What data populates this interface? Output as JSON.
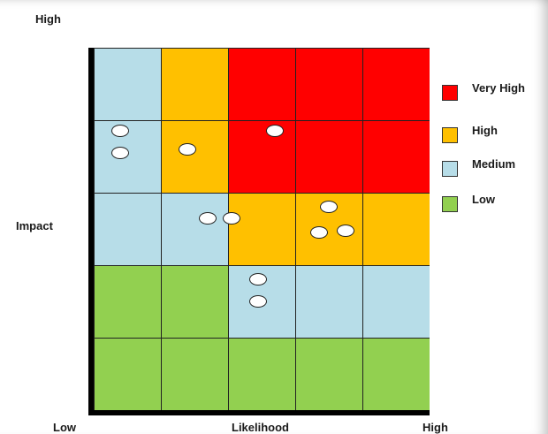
{
  "axis": {
    "y_high": "High",
    "y_label": "Impact",
    "x_low": "Low",
    "x_label": "Likelihood",
    "x_high": "High"
  },
  "colors": {
    "very_high": "#ff0000",
    "high": "#ffc000",
    "medium": "#b7dde8",
    "low": "#92d050"
  },
  "legend": [
    {
      "key": "very_high",
      "label": "Very High"
    },
    {
      "key": "high",
      "label": "High"
    },
    {
      "key": "medium",
      "label": "Medium"
    },
    {
      "key": "low",
      "label": "Low"
    }
  ],
  "matrix": {
    "likelihood_levels": 5,
    "impact_levels": 5,
    "rows_top_to_bottom": [
      [
        "medium",
        "high",
        "very_high",
        "very_high",
        "very_high"
      ],
      [
        "medium",
        "high",
        "very_high",
        "very_high",
        "very_high"
      ],
      [
        "medium",
        "medium",
        "high",
        "high",
        "high"
      ],
      [
        "low",
        "low",
        "medium",
        "medium",
        "medium"
      ],
      [
        "low",
        "low",
        "low",
        "low",
        "low"
      ]
    ]
  },
  "risks": [
    {
      "likelihood": 1.4,
      "impact": 4.85
    },
    {
      "likelihood": 1.4,
      "impact": 4.55
    },
    {
      "likelihood": 2.4,
      "impact": 4.6
    },
    {
      "likelihood": 3.7,
      "impact": 4.85
    },
    {
      "likelihood": 2.7,
      "impact": 3.65
    },
    {
      "likelihood": 3.05,
      "impact": 3.65
    },
    {
      "likelihood": 4.5,
      "impact": 3.8
    },
    {
      "likelihood": 4.35,
      "impact": 3.45
    },
    {
      "likelihood": 4.75,
      "impact": 3.48
    },
    {
      "likelihood": 3.45,
      "impact": 2.8
    },
    {
      "likelihood": 3.45,
      "impact": 2.5
    }
  ]
}
